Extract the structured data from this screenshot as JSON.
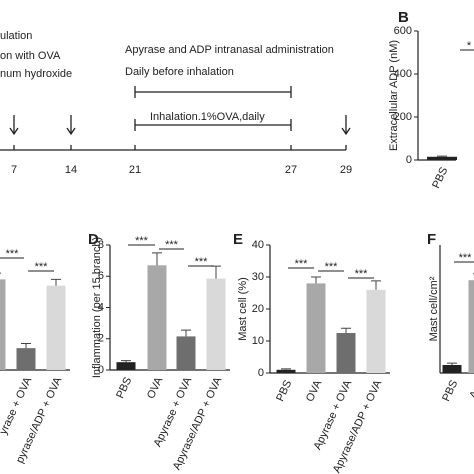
{
  "timeline": {
    "left_texts": [
      "ulation",
      "on with OVA",
      "num hydroxide"
    ],
    "top_texts": [
      "Apyrase and ADP intranasal administration",
      "Daily before inhalation"
    ],
    "bracket_text": "Inhalation.1%OVA,daily",
    "days": [
      "7",
      "14",
      "21",
      "27",
      "29"
    ]
  },
  "chart_data": [
    {
      "type": "bar",
      "letter": "B",
      "ylabel": "Extracellular ADP (nM)",
      "categories": [
        "PBS"
      ],
      "values": [
        15
      ],
      "errors": [
        3
      ],
      "colors": [
        "#222222"
      ],
      "ylim": [
        0,
        600
      ],
      "yticks": [
        0,
        200,
        400,
        600
      ],
      "annotations": [
        "*"
      ]
    },
    {
      "type": "bar",
      "categories": [
        null,
        "yrase + OVA",
        "pyrase/ADP + OVA"
      ],
      "values": [
        5.8,
        1.4,
        5.4
      ],
      "errors": [
        0.4,
        0.3,
        0.4
      ],
      "colors": [
        "#a8a8a8",
        "#6e6e6e",
        "#d9d9d9"
      ],
      "ylim": [
        0,
        8
      ],
      "annotations": [
        "***",
        "***"
      ]
    },
    {
      "type": "bar",
      "letter": "D",
      "ylabel": "Inflammation (per 15 branch)",
      "categories": [
        "PBS",
        "OVA",
        "Apyrase + OVA",
        "Apyrase/ADP + OVA"
      ],
      "values": [
        0.5,
        6.7,
        2.15,
        5.85
      ],
      "errors": [
        0.1,
        0.8,
        0.4,
        0.8
      ],
      "colors": [
        "#222222",
        "#a8a8a8",
        "#6e6e6e",
        "#d9d9d9"
      ],
      "ylim": [
        0,
        8
      ],
      "yticks": [
        0,
        2,
        4,
        6,
        8
      ],
      "annotations": [
        "***",
        "***",
        "***"
      ]
    },
    {
      "type": "bar",
      "letter": "E",
      "ylabel": "Mast cell (%)",
      "categories": [
        "PBS",
        "OVA",
        "Apyrase + OVA",
        "Apyrase/ADP + OVA"
      ],
      "values": [
        1,
        28,
        12.5,
        26
      ],
      "errors": [
        0.3,
        2,
        1.5,
        2.8
      ],
      "colors": [
        "#222222",
        "#a8a8a8",
        "#6e6e6e",
        "#d9d9d9"
      ],
      "ylim": [
        0,
        40
      ],
      "yticks": [
        0,
        10,
        20,
        30,
        40
      ],
      "annotations": [
        "***",
        "***",
        "***"
      ]
    },
    {
      "type": "bar",
      "letter": "F",
      "ylabel": "Mast cell/cm²",
      "categories": [
        "PBS",
        "Apy"
      ],
      "values": [
        2.5,
        29
      ],
      "errors": [
        0.6,
        2
      ],
      "colors": [
        "#222222",
        "#a8a8a8"
      ],
      "ylim": [
        0,
        40
      ],
      "annotations": [
        "***"
      ]
    }
  ]
}
